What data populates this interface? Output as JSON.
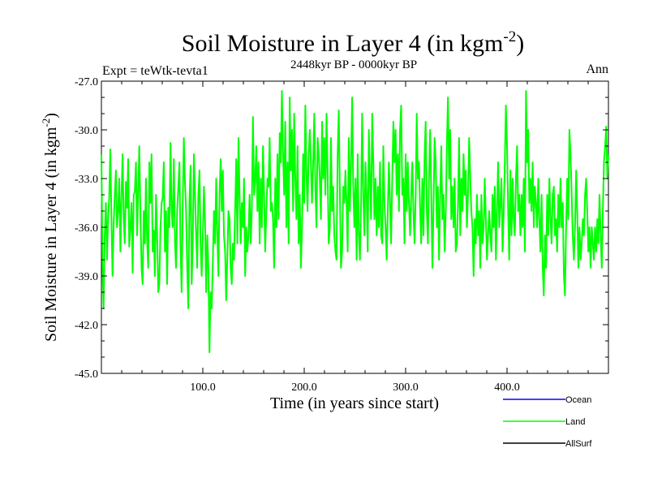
{
  "chart_data": {
    "type": "line",
    "title": "Soil Moisture in Layer 4 (in kgm",
    "title_superscript": "-2",
    "title_close": ")",
    "subtitle": "2448kyr BP - 0000kyr BP",
    "left_label": "Expt = teWtk-tevta1",
    "right_label": "Ann",
    "xlabel": "Time (in years since start)",
    "ylabel": "Soil Moisture in Layer 4 (in kgm",
    "ylabel_superscript": "-2",
    "ylabel_close": ")",
    "xlim": [
      0,
      500
    ],
    "ylim": [
      -45.0,
      -27.0
    ],
    "xticks": [
      100,
      200,
      300,
      400
    ],
    "xtick_labels": [
      "100.0",
      "200.0",
      "300.0",
      "400.0"
    ],
    "yticks": [
      -27,
      -30,
      -33,
      -36,
      -39,
      -42,
      -45
    ],
    "ytick_labels": [
      "-27.0",
      "-30.0",
      "-33.0",
      "-36.0",
      "-39.0",
      "-42.0",
      "-45.0"
    ],
    "legend": {
      "placement": "bottom-right",
      "entries": [
        {
          "name": "Ocean",
          "color": "#0000ff"
        },
        {
          "name": "Land",
          "color": "#00ff00"
        },
        {
          "name": "AllSurf",
          "color": "#000000"
        }
      ]
    },
    "series": [
      {
        "name": "Land",
        "color": "#00ff00",
        "x_start": 0,
        "x_step": 5,
        "values": [
          -31.5,
          -38.5,
          -41.0,
          -36.5,
          -34.5,
          -38.0,
          -35.5,
          -34.2,
          -31.2,
          -35.5,
          -39.0,
          -35.8,
          -34.0,
          -32.5,
          -36.0,
          -35.0,
          -33.0,
          -37.5,
          -34.2,
          -31.5,
          -35.5,
          -37.0,
          -33.2,
          -34.8,
          -31.8,
          -37.2,
          -36.0,
          -34.5,
          -38.8,
          -34.0,
          -33.8,
          -32.0,
          -36.5,
          -34.0,
          -31.0,
          -35.2,
          -38.5,
          -39.5,
          -35.0,
          -37.0,
          -33.0,
          -36.8,
          -38.5,
          -32.0,
          -34.5,
          -31.5,
          -37.5,
          -36.2,
          -39.0,
          -34.0,
          -36.5,
          -40.0,
          -39.5,
          -36.0,
          -34.5,
          -34.2,
          -32.0,
          -37.5,
          -35.0,
          -39.5,
          -34.8,
          -36.0,
          -30.8,
          -35.0,
          -36.0,
          -31.8,
          -37.0,
          -38.5,
          -35.0,
          -33.5,
          -32.0,
          -37.2,
          -40.0,
          -34.5,
          -30.5,
          -33.2,
          -35.0,
          -38.5,
          -41.0,
          -34.5,
          -32.2,
          -39.5,
          -37.0,
          -31.5,
          -34.0,
          -36.5,
          -38.5,
          -34.0,
          -32.5,
          -37.0,
          -39.0,
          -36.5,
          -33.5,
          -35.5,
          -40.0,
          -36.5,
          -38.5,
          -43.7,
          -40.0,
          -41.0,
          -38.0,
          -35.0,
          -37.0,
          -33.0,
          -36.5,
          -39.0,
          -34.0,
          -31.8,
          -35.0,
          -32.5,
          -36.5,
          -37.5,
          -40.5,
          -38.0,
          -35.0,
          -35.5,
          -38.5,
          -39.5,
          -37.0,
          -38.0,
          -35.0,
          -31.8,
          -37.0,
          -30.5,
          -34.0,
          -37.0,
          -34.5,
          -36.0,
          -33.0,
          -39.0,
          -36.0,
          -37.5,
          -36.5,
          -34.0,
          -37.0,
          -35.0,
          -29.2,
          -34.0,
          -33.0,
          -31.0,
          -35.0,
          -32.0,
          -37.0,
          -33.0,
          -36.0,
          -31.0,
          -34.0,
          -37.5,
          -35.0,
          -33.0,
          -33.5,
          -30.5,
          -35.0,
          -34.5,
          -35.5,
          -38.5,
          -33.0,
          -36.0,
          -31.5,
          -35.5,
          -30.2,
          -32.0,
          -27.6,
          -31.5,
          -34.0,
          -29.5,
          -36.0,
          -32.0,
          -37.0,
          -28.0,
          -32.5,
          -30.0,
          -35.0,
          -29.0,
          -33.0,
          -35.5,
          -31.0,
          -37.0,
          -34.0,
          -38.5,
          -36.0,
          -31.5,
          -34.5,
          -28.5,
          -32.5,
          -35.0,
          -31.5,
          -30.0,
          -32.0,
          -34.5,
          -32.0,
          -29.0,
          -33.5,
          -36.0,
          -30.5,
          -31.5,
          -33.0,
          -35.5,
          -29.5,
          -33.0,
          -30.5,
          -34.0,
          -29.0,
          -32.5,
          -37.0,
          -36.0,
          -30.5,
          -35.0,
          -33.5,
          -36.5,
          -37.5,
          -38.0,
          -31.5,
          -28.8,
          -34.0,
          -38.5,
          -37.5,
          -33.5,
          -34.5,
          -32.5,
          -34.5,
          -37.5,
          -30.5,
          -35.0,
          -32.0,
          -28.0,
          -33.5,
          -36.0,
          -33.0,
          -38.0,
          -31.5,
          -36.5,
          -38.0,
          -34.5,
          -29.0,
          -34.0,
          -36.5,
          -32.0,
          -34.0,
          -37.5,
          -30.0,
          -33.0,
          -35.5,
          -29.0,
          -32.0,
          -35.5,
          -33.0,
          -36.5,
          -33.5,
          -36.0,
          -32.0,
          -36.5,
          -37.0,
          -31.0,
          -34.5,
          -36.0,
          -38.0,
          -35.0,
          -32.0,
          -34.5,
          -37.0,
          -33.0,
          -29.5,
          -32.0,
          -30.0,
          -34.0,
          -31.5,
          -35.0,
          -30.0,
          -28.5,
          -34.0,
          -33.0,
          -37.0,
          -31.5,
          -35.0,
          -32.0,
          -34.5,
          -36.5,
          -34.0,
          -32.0,
          -35.0,
          -37.0,
          -34.0,
          -29.0,
          -33.0,
          -32.0,
          -35.0,
          -37.0,
          -33.0,
          -36.5,
          -31.5,
          -29.5,
          -35.0,
          -37.0,
          -33.0,
          -30.0,
          -34.0,
          -38.5,
          -35.0,
          -30.5,
          -32.0,
          -36.0,
          -33.5,
          -38.0,
          -34.0,
          -31.0,
          -35.5,
          -34.0,
          -37.5,
          -35.0,
          -31.0,
          -28.0,
          -33.0,
          -30.0,
          -35.5,
          -33.5,
          -36.0,
          -33.0,
          -37.5,
          -37.0,
          -34.5,
          -30.5,
          -36.5,
          -33.0,
          -35.0,
          -31.5,
          -34.0,
          -32.5,
          -36.0,
          -34.0,
          -30.5,
          -33.0,
          -35.0,
          -36.0,
          -39.0,
          -35.5,
          -37.0,
          -34.0,
          -36.5,
          -35.0,
          -38.5,
          -34.0,
          -37.0,
          -36.0,
          -33.0,
          -35.5,
          -38.0,
          -36.5,
          -35.0,
          -36.5,
          -37.5,
          -34.0,
          -36.0,
          -33.5,
          -38.0,
          -35.0,
          -32.0,
          -36.0,
          -34.5,
          -33.0,
          -37.5,
          -35.0,
          -32.0,
          -28.5,
          -31.0,
          -35.0,
          -38.0,
          -32.5,
          -36.5,
          -33.0,
          -35.5,
          -36.5,
          -33.0,
          -31.0,
          -35.0,
          -34.0,
          -36.5,
          -34.0,
          -36.0,
          -33.0,
          -37.5,
          -27.6,
          -32.0,
          -30.0,
          -34.5,
          -33.0,
          -35.0,
          -32.0,
          -36.0,
          -33.5,
          -34.5,
          -36.0,
          -33.0,
          -35.5,
          -37.5,
          -34.0,
          -38.5,
          -40.2,
          -36.5,
          -38.5,
          -34.0,
          -36.5,
          -33.0,
          -35.5,
          -37.0,
          -34.0,
          -33.5,
          -36.5,
          -35.5,
          -37.5,
          -34.0,
          -36.0,
          -33.0,
          -36.0,
          -34.5,
          -39.0,
          -40.2,
          -36.0,
          -33.0,
          -35.5,
          -30.0,
          -31.5,
          -34.0,
          -36.5,
          -38.0,
          -36.0,
          -32.5,
          -35.0,
          -38.5,
          -36.0,
          -38.0,
          -37.0,
          -35.5,
          -36.5,
          -34.0,
          -33.0,
          -35.0,
          -37.5,
          -36.0,
          -38.5,
          -36.0,
          -37.0,
          -38.0,
          -36.0,
          -37.5,
          -35.5,
          -37.0,
          -34.0,
          -36.5,
          -38.5,
          -35.0,
          -32.0,
          -31.0,
          -29.8,
          -33.0,
          -31.5
        ]
      }
    ]
  }
}
